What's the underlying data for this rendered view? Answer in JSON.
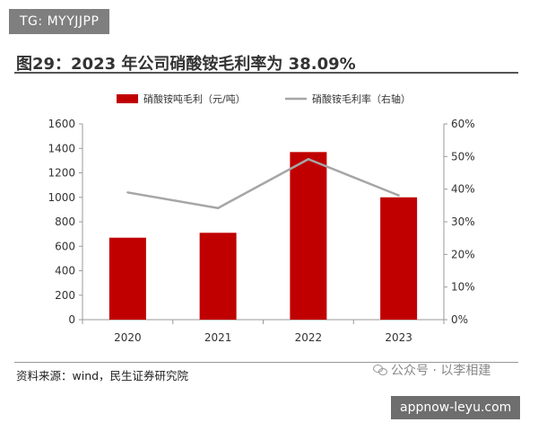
{
  "tag_text": "TG: MYYJJPP",
  "figure_title": "图29：2023 年公司硝酸铵毛利率为 38.09%",
  "source_text": "资料来源：wind，民生证券研究院",
  "wechat_text": "公众号 · 以李相建",
  "watermark_text": "appnow-leyu.com",
  "colors": {
    "bar": "#c00000",
    "line": "#a6a6a6",
    "axis": "#999999",
    "text": "#333333"
  },
  "chart_data": {
    "type": "bar",
    "categories": [
      "2020",
      "2021",
      "2022",
      "2023"
    ],
    "series": [
      {
        "name": "硝酸铵吨毛利（元/吨）",
        "type": "bar",
        "axis": "left",
        "values": [
          670,
          710,
          1370,
          1000
        ]
      },
      {
        "name": "硝酸铵毛利率（右轴）",
        "type": "line",
        "axis": "right",
        "values": [
          39.0,
          34.2,
          49.2,
          38.09
        ]
      }
    ],
    "ylim": [
      0,
      1600
    ],
    "yticks": [
      "0",
      "200",
      "400",
      "600",
      "800",
      "1000",
      "1200",
      "1400",
      "1600"
    ],
    "y2lim": [
      0,
      60
    ],
    "y2ticks": [
      "0%",
      "10%",
      "20%",
      "30%",
      "40%",
      "50%",
      "60%"
    ],
    "legend_position": "top-center",
    "grid": false
  }
}
